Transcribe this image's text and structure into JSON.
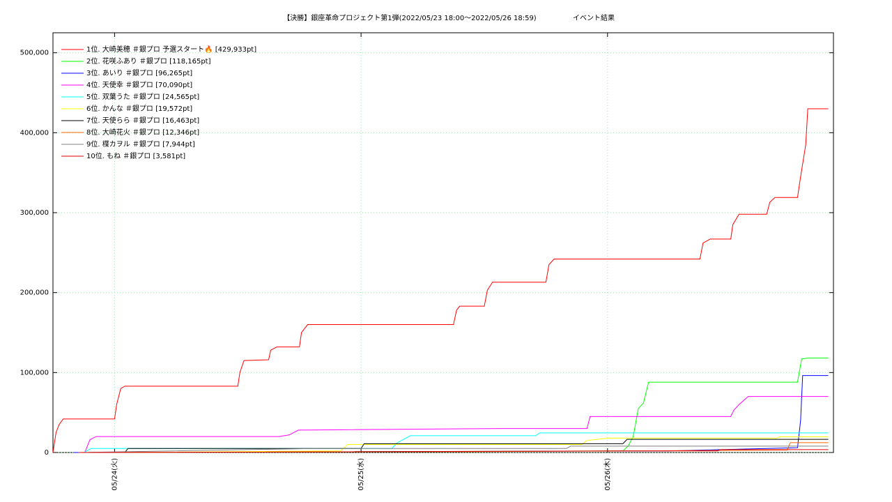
{
  "chart_data": {
    "type": "line",
    "title": "【決勝】銀座革命プロジェクト第1弾(2022/05/23 18:00～2022/05/26 18:59)",
    "subtitle": "イベント結果",
    "xlim": [
      0,
      76
    ],
    "xticks": [
      {
        "value": 6,
        "label": "05/24(火)"
      },
      {
        "value": 30,
        "label": "05/25(水)"
      },
      {
        "value": 54,
        "label": "05/26(木)"
      }
    ],
    "ylim": [
      0,
      525000
    ],
    "yticks": [
      0,
      {
        "value": 100000,
        "label": "100,000"
      },
      {
        "value": 200000,
        "label": "200,000"
      },
      {
        "value": 300000,
        "label": "300,000"
      },
      {
        "value": 400000,
        "label": "400,000"
      },
      {
        "value": 500000,
        "label": "500,000"
      }
    ],
    "grid": true,
    "legend": "top-left",
    "series": [
      {
        "name": "1位. 大崎美穂 ＃銀プロ 予選スタート🔥 [429,933pt]",
        "color": "#ff0000",
        "x": [
          0,
          0.3,
          0.6,
          1.0,
          6.0,
          6.2,
          6.6,
          7.0,
          18.0,
          18.2,
          18.6,
          21.0,
          21.2,
          21.8,
          24.0,
          24.2,
          24.8,
          39.0,
          39.3,
          39.6,
          42.0,
          42.3,
          42.8,
          48.0,
          48.3,
          48.8,
          63.0,
          63.3,
          64.0,
          66.0,
          66.2,
          66.8,
          69.5,
          69.8,
          70.3,
          72.5,
          72.8,
          73.3,
          73.5,
          75.5
        ],
        "values": [
          0,
          25000,
          35000,
          42000,
          42000,
          60000,
          80000,
          83000,
          83000,
          100000,
          115000,
          116000,
          128000,
          132000,
          132000,
          150000,
          160000,
          160000,
          178000,
          183000,
          183000,
          203000,
          213000,
          213000,
          235000,
          242000,
          242000,
          262000,
          267000,
          267000,
          285000,
          298000,
          298000,
          313000,
          319000,
          319000,
          345000,
          385000,
          429933,
          429933
        ]
      },
      {
        "name": "2位. 花咲ふあり ＃銀プロ [118,165pt]",
        "color": "#00ff00",
        "x": [
          2.0,
          55.5,
          56.0,
          56.5,
          57.0,
          57.5,
          58.0,
          72.5,
          72.9,
          73.5,
          75.5
        ],
        "values": [
          0,
          2000,
          8000,
          20000,
          55000,
          62000,
          88000,
          88000,
          117000,
          118165,
          118165
        ]
      },
      {
        "name": "3位. あいり ＃銀プロ [96,265pt]",
        "color": "#0000ff",
        "x": [
          2.0,
          60.0,
          72.5,
          72.8,
          73.0,
          75.5
        ],
        "values": [
          0,
          2000,
          6000,
          40000,
          96265,
          96265
        ]
      },
      {
        "name": "4位. 天使幸 ＃銀プロ [70,090pt]",
        "color": "#ff00ff",
        "x": [
          3.1,
          3.6,
          4.2,
          22.0,
          23.0,
          23.9,
          43.7,
          52.0,
          52.3,
          66.0,
          66.3,
          66.8,
          67.7,
          75.5
        ],
        "values": [
          0,
          16000,
          20000,
          20000,
          22000,
          28000,
          30000,
          30000,
          45000,
          45000,
          53000,
          60000,
          70090,
          70090
        ]
      },
      {
        "name": "5位. 双葉うた ＃銀プロ [24,565pt]",
        "color": "#00ffff",
        "x": [
          3.0,
          3.7,
          33.0,
          33.5,
          34.8,
          47.0,
          47.4,
          75.5
        ],
        "values": [
          0,
          5000,
          5000,
          12000,
          21000,
          21000,
          24565,
          24565
        ]
      },
      {
        "name": "6位. かんな ＃銀プロ [19,572pt]",
        "color": "#ffff00",
        "x": [
          6.0,
          28.0,
          28.7,
          51.5,
          52.0,
          54.0,
          70.5,
          70.8,
          75.5
        ],
        "values": [
          0,
          2000,
          10000,
          10000,
          15000,
          18000,
          18000,
          19572,
          19572
        ]
      },
      {
        "name": "7位. 天使らら ＃銀プロ [16,463pt]",
        "color": "#000000",
        "x": [
          7.0,
          7.3,
          30.0,
          30.3,
          55.5,
          55.9,
          75.5
        ],
        "values": [
          0,
          5000,
          5000,
          11000,
          11000,
          16463,
          16463
        ]
      },
      {
        "name": "8位. 大崎花火 ＃銀プロ [12,346pt]",
        "color": "#ff6600",
        "x": [
          2.5,
          40.0,
          71.5,
          71.8,
          75.5
        ],
        "values": [
          0,
          1000,
          3000,
          12346,
          12346
        ]
      },
      {
        "name": "9位. 楪カヲル ＃銀プロ [7,944pt]",
        "color": "#808080",
        "x": [
          2.5,
          25.4,
          50.0,
          50.4,
          75.5
        ],
        "values": [
          0,
          5000,
          5000,
          7944,
          7944
        ]
      },
      {
        "name": "10位. もね ＃銀プロ [3,581pt]",
        "color": "#e00000",
        "x": [
          2.5,
          55.9,
          64.7,
          65.0,
          75.5
        ],
        "values": [
          0,
          2000,
          2000,
          3581,
          3581
        ]
      }
    ]
  }
}
